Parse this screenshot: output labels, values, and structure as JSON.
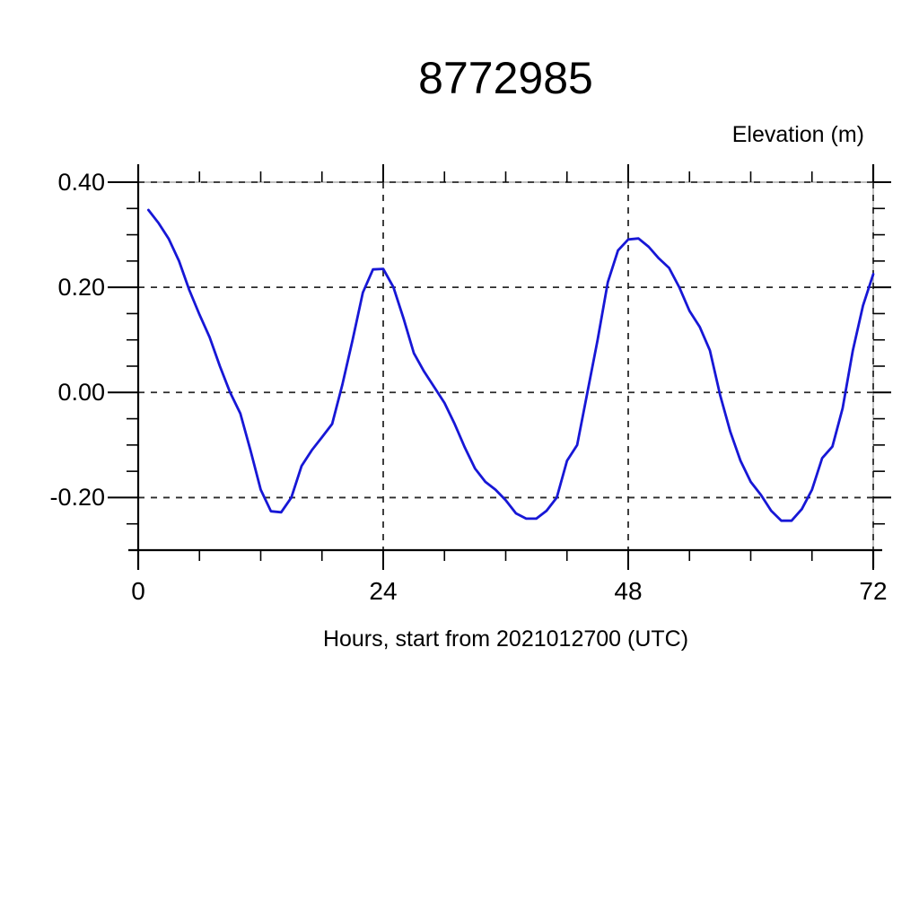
{
  "page": {
    "background": "#ffffff"
  },
  "chart_data": {
    "type": "line",
    "title": "8772985",
    "ylabel": "Elevation (m)",
    "xlabel": "Hours, start from 2021012700 (UTC)",
    "xlim": [
      0,
      72
    ],
    "ylim": [
      -0.3,
      0.4
    ],
    "x_ticks_major": [
      0,
      24,
      48,
      72
    ],
    "x_tick_labels": [
      "0",
      "24",
      "48",
      "72"
    ],
    "x_ticks_minor": [
      6,
      12,
      18,
      30,
      36,
      42,
      54,
      60,
      66
    ],
    "y_ticks_major": [
      0.4,
      0.2,
      0.0,
      -0.2
    ],
    "y_tick_labels": [
      "0.40",
      "0.20",
      "0.00",
      "-0.20"
    ],
    "y_ticks_minor": [
      0.35,
      0.3,
      0.25,
      0.15,
      0.1,
      0.05,
      -0.05,
      -0.1,
      -0.15,
      -0.25
    ],
    "grid": {
      "style": "dashed",
      "x_lines": [
        24,
        48,
        72
      ],
      "y_lines": [
        0.4,
        0.2,
        0.0,
        -0.2
      ]
    },
    "legend": "none",
    "colors": {
      "line": "#1717d6",
      "grid": "#2a2a2a",
      "axis": "#000000",
      "frame_thin": "#9a9a9a"
    },
    "series": [
      {
        "name": "elevation",
        "x": [
          1,
          2,
          3,
          4,
          5,
          6,
          7,
          8,
          9,
          10,
          11,
          12,
          13,
          14,
          15,
          16,
          17,
          18,
          19,
          20,
          21,
          22,
          23,
          24,
          25,
          26,
          27,
          28,
          29,
          30,
          31,
          32,
          33,
          34,
          35,
          36,
          37,
          38,
          39,
          40,
          41,
          42,
          43,
          44,
          45,
          46,
          47,
          48,
          49,
          50,
          51,
          52,
          53,
          54,
          55,
          56,
          57,
          58,
          59,
          60,
          61,
          62,
          63,
          64,
          65,
          66,
          67,
          68,
          69,
          70,
          71,
          72
        ],
        "y": [
          0.347,
          0.322,
          0.292,
          0.25,
          0.195,
          0.148,
          0.105,
          0.05,
          0.0,
          -0.04,
          -0.11,
          -0.185,
          -0.226,
          -0.228,
          -0.2,
          -0.14,
          -0.11,
          -0.085,
          -0.06,
          0.015,
          0.1,
          0.19,
          0.234,
          0.235,
          0.2,
          0.14,
          0.075,
          0.04,
          0.01,
          -0.02,
          -0.06,
          -0.105,
          -0.145,
          -0.17,
          -0.185,
          -0.205,
          -0.23,
          -0.24,
          -0.24,
          -0.225,
          -0.2,
          -0.13,
          -0.1,
          0.0,
          0.1,
          0.21,
          0.27,
          0.291,
          0.293,
          0.277,
          0.255,
          0.237,
          0.2,
          0.155,
          0.125,
          0.08,
          -0.005,
          -0.075,
          -0.13,
          -0.17,
          -0.195,
          -0.225,
          -0.244,
          -0.244,
          -0.222,
          -0.185,
          -0.125,
          -0.103,
          -0.03,
          0.08,
          0.165,
          0.225
        ]
      }
    ]
  }
}
